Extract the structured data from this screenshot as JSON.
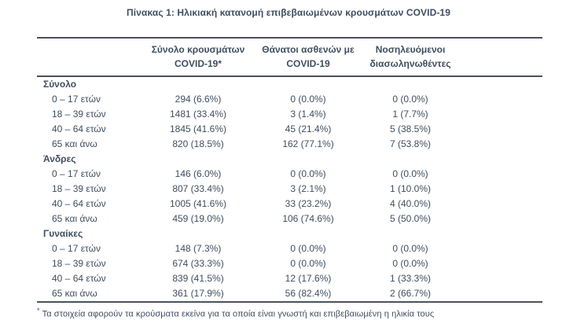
{
  "title": "Πίνακας 1: Ηλικιακή κατανομή επιβεβαιωμένων κρουσμάτων COVID-19",
  "table": {
    "columns": [
      {
        "line1": "Σύνολο κρουσμάτων",
        "line2": "COVID-19*"
      },
      {
        "line1": "Θάνατοι ασθενών με",
        "line2": "COVID-19"
      },
      {
        "line1": "Νοσηλευόμενοι",
        "line2": "διασωληνωθέντες"
      }
    ],
    "sections": [
      {
        "label": "Σύνολο",
        "rows": [
          {
            "age": "0 – 17 ετών",
            "cases": "294 (6.6%)",
            "deaths": "0 (0.0%)",
            "intubated": "0 (0.0%)"
          },
          {
            "age": "18 – 39 ετών",
            "cases": "1481 (33.4%)",
            "deaths": "3 (1.4%)",
            "intubated": "1 (7.7%)"
          },
          {
            "age": "40 – 64 ετών",
            "cases": "1845 (41.6%)",
            "deaths": "45 (21.4%)",
            "intubated": "5 (38.5%)"
          },
          {
            "age": "65 και άνω",
            "cases": "820 (18.5%)",
            "deaths": "162 (77.1%)",
            "intubated": "7 (53.8%)"
          }
        ]
      },
      {
        "label": "Άνδρες",
        "rows": [
          {
            "age": "0 – 17 ετών",
            "cases": "146 (6.0%)",
            "deaths": "0 (0.0%)",
            "intubated": "0 (0.0%)"
          },
          {
            "age": "18 – 39 ετών",
            "cases": "807 (33.4%)",
            "deaths": "3 (2.1%)",
            "intubated": "1 (10.0%)"
          },
          {
            "age": "40 – 64 ετών",
            "cases": "1005 (41.6%)",
            "deaths": "33 (23.2%)",
            "intubated": "4 (40.0%)"
          },
          {
            "age": "65 και άνω",
            "cases": "459 (19.0%)",
            "deaths": "106 (74.6%)",
            "intubated": "5 (50.0%)"
          }
        ]
      },
      {
        "label": "Γυναίκες",
        "rows": [
          {
            "age": "0 – 17 ετών",
            "cases": "148 (7.3%)",
            "deaths": "0 (0.0%)",
            "intubated": "0 (0.0%)"
          },
          {
            "age": "18 – 39 ετών",
            "cases": "674 (33.3%)",
            "deaths": "0 (0.0%)",
            "intubated": "0 (0.0%)"
          },
          {
            "age": "40 – 64 ετών",
            "cases": "839 (41.5%)",
            "deaths": "12 (17.6%)",
            "intubated": "1 (33.3%)"
          },
          {
            "age": "65 και άνω",
            "cases": "361 (17.9%)",
            "deaths": "56 (82.4%)",
            "intubated": "2 (66.7%)"
          }
        ]
      }
    ]
  },
  "footnote": {
    "marker": "*",
    "text": "Τα στοιχεία αφορούν τα κρούσματα εκείνα για τα οποία είναι γνωστή και επιβεβαιωμένη η ηλικία τους"
  },
  "colors": {
    "text": "#3F4E5E",
    "border": "#49535D",
    "background": "#FFFFFF"
  }
}
